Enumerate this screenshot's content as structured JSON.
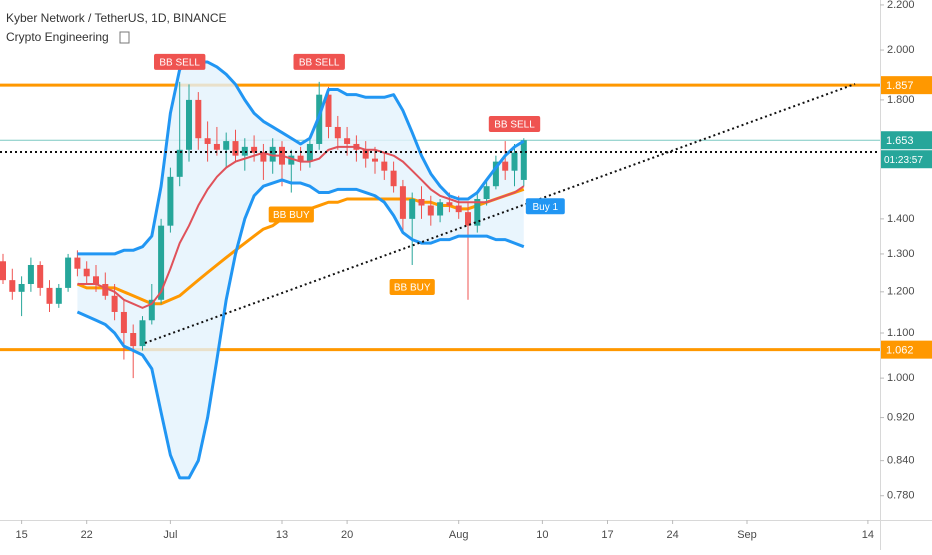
{
  "chart_data": {
    "type": "candlestick",
    "title": "Kyber Network / TetherUS, 1D, BINANCE",
    "subtitle": "Crypto Engineering",
    "countdown": "01:23:57",
    "log_scale": true,
    "ylim": [
      0.741,
      2.223
    ],
    "yticks": [
      {
        "value": 2.2,
        "label": "2.200"
      },
      {
        "value": 2.0,
        "label": "2.000"
      },
      {
        "value": 1.8,
        "label": "1.800"
      },
      {
        "value": 1.4,
        "label": "1.400"
      },
      {
        "value": 1.3,
        "label": "1.300"
      },
      {
        "value": 1.2,
        "label": "1.200"
      },
      {
        "value": 1.1,
        "label": "1.100"
      },
      {
        "value": 1.0,
        "label": "1.000"
      },
      {
        "value": 0.92,
        "label": "0.920"
      },
      {
        "value": 0.84,
        "label": "0.840"
      },
      {
        "value": 0.78,
        "label": "0.780"
      }
    ],
    "categories": [
      null,
      null,
      "15",
      null,
      null,
      null,
      null,
      null,
      null,
      "22",
      null,
      null,
      null,
      null,
      null,
      null,
      null,
      null,
      "Jul",
      null,
      null,
      null,
      null,
      null,
      null,
      null,
      null,
      null,
      null,
      null,
      "13",
      null,
      null,
      null,
      null,
      null,
      null,
      "20",
      null,
      null,
      null,
      null,
      null,
      null,
      null,
      null,
      null,
      null,
      null,
      "Aug",
      null,
      null,
      null,
      null,
      null,
      null,
      null,
      null,
      "10",
      null,
      null,
      null,
      null,
      null,
      null,
      "17",
      null,
      null,
      null,
      null,
      null,
      null,
      "24",
      null,
      null,
      null,
      null,
      null,
      null,
      null,
      "Sep",
      null,
      null,
      null,
      null,
      null,
      null,
      null,
      null,
      null,
      null,
      null,
      null,
      "14",
      null
    ],
    "up_color": "#26a69a",
    "down_color": "#ef5350",
    "candles": {
      "open": [
        1.28,
        1.23,
        1.2,
        1.22,
        1.27,
        1.21,
        1.17,
        1.21,
        1.29,
        1.26,
        1.24,
        1.22,
        1.19,
        1.15,
        1.1,
        1.07,
        1.13,
        1.18,
        1.38,
        1.53,
        1.62,
        1.8,
        1.66,
        1.64,
        1.62,
        1.65,
        1.6,
        1.63,
        1.61,
        1.58,
        1.63,
        1.57,
        1.6,
        1.58,
        1.64,
        1.82,
        1.7,
        1.66,
        1.64,
        1.62,
        1.59,
        1.58,
        1.55,
        1.5,
        1.4,
        1.46,
        1.44,
        1.41,
        1.45,
        1.44,
        1.42,
        1.38,
        1.46,
        1.5,
        1.58,
        1.55,
        1.52,
        null,
        null,
        null,
        null,
        null,
        null,
        null,
        null,
        null,
        null,
        null,
        null,
        null,
        null,
        null,
        null,
        null,
        null,
        null,
        null,
        null,
        null,
        null,
        null,
        null,
        null,
        null,
        null,
        null,
        null,
        null,
        null,
        null,
        null,
        null,
        null,
        null,
        null
      ],
      "high": [
        1.3,
        1.26,
        1.24,
        1.29,
        1.28,
        1.23,
        1.22,
        1.3,
        1.31,
        1.28,
        1.27,
        1.25,
        1.22,
        1.18,
        1.12,
        1.14,
        1.22,
        1.4,
        1.56,
        1.87,
        1.86,
        1.83,
        1.72,
        1.7,
        1.68,
        1.69,
        1.66,
        1.67,
        1.64,
        1.66,
        1.65,
        1.62,
        1.63,
        1.66,
        1.87,
        1.85,
        1.74,
        1.7,
        1.67,
        1.65,
        1.63,
        1.61,
        1.58,
        1.52,
        1.48,
        1.5,
        1.47,
        1.46,
        1.48,
        1.47,
        1.45,
        1.48,
        1.52,
        1.6,
        1.65,
        1.64,
        1.66,
        null,
        null,
        null,
        null,
        null,
        null,
        null,
        null,
        null,
        null,
        null,
        null,
        null,
        null,
        null,
        null,
        null,
        null,
        null,
        null,
        null,
        null,
        null,
        null,
        null,
        null,
        null,
        null,
        null,
        null,
        null,
        null,
        null,
        null,
        null,
        null,
        null,
        null
      ],
      "low": [
        1.22,
        1.18,
        1.14,
        1.2,
        1.19,
        1.15,
        1.16,
        1.2,
        1.24,
        1.22,
        1.2,
        1.18,
        1.13,
        1.04,
        1.0,
        1.06,
        1.12,
        1.17,
        1.36,
        1.5,
        1.58,
        1.62,
        1.58,
        1.6,
        1.56,
        1.58,
        1.55,
        1.58,
        1.52,
        1.54,
        1.5,
        1.48,
        1.55,
        1.56,
        1.62,
        1.66,
        1.62,
        1.6,
        1.58,
        1.56,
        1.54,
        1.52,
        1.48,
        1.36,
        1.27,
        1.4,
        1.38,
        1.39,
        1.42,
        1.4,
        1.18,
        1.36,
        1.44,
        1.49,
        1.52,
        1.5,
        1.5,
        null,
        null,
        null,
        null,
        null,
        null,
        null,
        null,
        null,
        null,
        null,
        null,
        null,
        null,
        null,
        null,
        null,
        null,
        null,
        null,
        null,
        null,
        null,
        null,
        null,
        null,
        null,
        null,
        null,
        null,
        null,
        null,
        null,
        null,
        null,
        null,
        null,
        null
      ],
      "close": [
        1.23,
        1.2,
        1.22,
        1.27,
        1.21,
        1.17,
        1.21,
        1.29,
        1.26,
        1.24,
        1.22,
        1.19,
        1.15,
        1.1,
        1.07,
        1.13,
        1.18,
        1.38,
        1.53,
        1.62,
        1.8,
        1.66,
        1.64,
        1.62,
        1.65,
        1.6,
        1.63,
        1.61,
        1.58,
        1.63,
        1.57,
        1.6,
        1.58,
        1.64,
        1.82,
        1.7,
        1.66,
        1.64,
        1.62,
        1.59,
        1.58,
        1.55,
        1.5,
        1.4,
        1.46,
        1.44,
        1.41,
        1.45,
        1.44,
        1.42,
        1.38,
        1.46,
        1.5,
        1.58,
        1.55,
        1.61,
        1.653,
        null,
        null,
        null,
        null,
        null,
        null,
        null,
        null,
        null,
        null,
        null,
        null,
        null,
        null,
        null,
        null,
        null,
        null,
        null,
        null,
        null,
        null,
        null,
        null,
        null,
        null,
        null,
        null,
        null,
        null,
        null,
        null,
        null,
        null,
        null,
        null,
        null,
        null
      ]
    },
    "bands": {
      "color": "#2196f3",
      "fill": "#e3f2fd",
      "basis_color": "#e0525a",
      "upper": [
        null,
        null,
        null,
        null,
        null,
        null,
        null,
        null,
        1.3,
        1.3,
        1.3,
        1.3,
        1.3,
        1.31,
        1.31,
        1.32,
        1.35,
        1.5,
        1.75,
        1.92,
        1.94,
        1.95,
        1.95,
        1.93,
        1.9,
        1.86,
        1.8,
        1.75,
        1.72,
        1.7,
        1.68,
        1.66,
        1.64,
        1.66,
        1.74,
        1.84,
        1.84,
        1.82,
        1.82,
        1.81,
        1.81,
        1.81,
        1.82,
        1.76,
        1.68,
        1.6,
        1.54,
        1.5,
        1.47,
        1.46,
        1.46,
        1.48,
        1.52,
        1.56,
        1.6,
        1.63,
        1.65,
        null,
        null,
        null,
        null,
        null,
        null,
        null,
        null,
        null,
        null,
        null,
        null,
        null,
        null,
        null,
        null,
        null,
        null,
        null,
        null,
        null,
        null,
        null,
        null,
        null,
        null,
        null,
        null,
        null,
        null,
        null,
        null,
        null,
        null,
        null,
        null,
        null,
        null
      ],
      "basis": [
        null,
        null,
        null,
        null,
        null,
        null,
        null,
        null,
        1.22,
        1.22,
        1.22,
        1.21,
        1.2,
        1.18,
        1.17,
        1.16,
        1.17,
        1.2,
        1.26,
        1.33,
        1.38,
        1.44,
        1.49,
        1.53,
        1.56,
        1.58,
        1.59,
        1.6,
        1.61,
        1.6,
        1.6,
        1.59,
        1.58,
        1.58,
        1.59,
        1.62,
        1.63,
        1.63,
        1.63,
        1.62,
        1.62,
        1.61,
        1.6,
        1.58,
        1.55,
        1.52,
        1.49,
        1.47,
        1.46,
        1.45,
        1.45,
        1.45,
        1.45,
        1.46,
        1.47,
        1.48,
        1.5,
        null,
        null,
        null,
        null,
        null,
        null,
        null,
        null,
        null,
        null,
        null,
        null,
        null,
        null,
        null,
        null,
        null,
        null,
        null,
        null,
        null,
        null,
        null,
        null,
        null,
        null,
        null,
        null,
        null,
        null,
        null,
        null,
        null,
        null,
        null,
        null,
        null,
        null
      ],
      "lower": [
        null,
        null,
        null,
        null,
        null,
        null,
        null,
        null,
        1.15,
        1.14,
        1.13,
        1.12,
        1.1,
        1.07,
        1.06,
        1.05,
        1.02,
        0.93,
        0.85,
        0.81,
        0.81,
        0.84,
        0.92,
        1.04,
        1.18,
        1.3,
        1.4,
        1.47,
        1.5,
        1.51,
        1.52,
        1.51,
        1.51,
        1.5,
        1.48,
        1.48,
        1.49,
        1.49,
        1.49,
        1.48,
        1.47,
        1.45,
        1.41,
        1.36,
        1.34,
        1.33,
        1.33,
        1.34,
        1.34,
        1.35,
        1.35,
        1.35,
        1.35,
        1.34,
        1.34,
        1.33,
        1.32,
        null,
        null,
        null,
        null,
        null,
        null,
        null,
        null,
        null,
        null,
        null,
        null,
        null,
        null,
        null,
        null,
        null,
        null,
        null,
        null,
        null,
        null,
        null,
        null,
        null,
        null,
        null,
        null,
        null,
        null,
        null,
        null,
        null,
        null,
        null,
        null,
        null,
        null
      ]
    },
    "ma": {
      "color": "#ff9800",
      "values": [
        null,
        null,
        null,
        null,
        null,
        null,
        null,
        null,
        1.22,
        1.21,
        1.21,
        1.21,
        1.21,
        1.2,
        1.19,
        1.18,
        1.17,
        1.17,
        1.18,
        1.19,
        1.21,
        1.23,
        1.25,
        1.27,
        1.29,
        1.31,
        1.33,
        1.35,
        1.37,
        1.38,
        1.4,
        1.41,
        1.42,
        1.43,
        1.44,
        1.45,
        1.45,
        1.46,
        1.46,
        1.46,
        1.46,
        1.46,
        1.46,
        1.46,
        1.46,
        1.45,
        1.45,
        1.44,
        1.44,
        1.43,
        1.43,
        1.44,
        1.45,
        1.46,
        1.47,
        1.48,
        1.49,
        null,
        null,
        null,
        null,
        null,
        null,
        null,
        null,
        null,
        null,
        null,
        null,
        null,
        null,
        null,
        null,
        null,
        null,
        null,
        null,
        null,
        null,
        null,
        null,
        null,
        null,
        null,
        null,
        null,
        null,
        null,
        null,
        null,
        null,
        null,
        null,
        null,
        null
      ]
    },
    "levels": [
      {
        "value": 1.857,
        "color": "#ff9800"
      },
      {
        "value": 1.062,
        "color": "#ff9800"
      }
    ],
    "last_price_color": "#26a69a",
    "annotations": [
      {
        "text": "BB SELL",
        "index": 19,
        "side": "above",
        "color": "#ef5350"
      },
      {
        "text": "BB SELL",
        "index": 34,
        "side": "above",
        "color": "#ef5350"
      },
      {
        "text": "BB SELL",
        "index": 55,
        "side": "above",
        "color": "#ef5350"
      },
      {
        "text": "BB BUY",
        "index": 31,
        "side": "below",
        "color": "#ff9800"
      },
      {
        "text": "BB BUY",
        "index": 44,
        "side": "below",
        "color": "#ff9800"
      },
      {
        "text": "Buy 1",
        "index": 56,
        "side": "right",
        "color": "#2196f3"
      }
    ]
  }
}
